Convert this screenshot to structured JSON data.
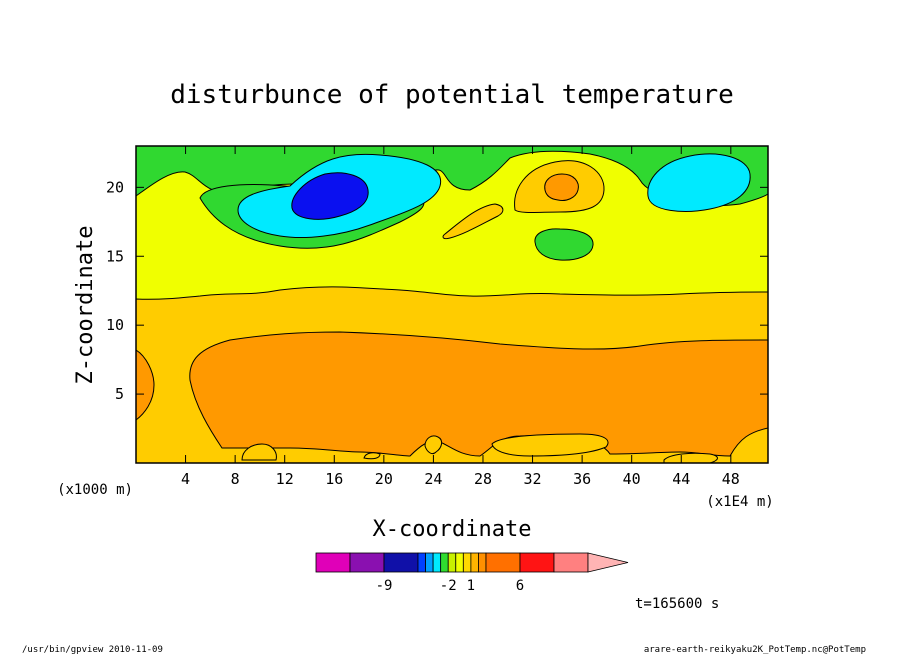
{
  "chart_data": {
    "type": "heatmap",
    "title": "disturbunce of potential temperature",
    "xlabel": "X-coordinate",
    "ylabel": "Z-coordinate",
    "x_unit": "(x1E4 m)",
    "y_unit": "(x1000 m)",
    "x_ticks": [
      4,
      8,
      12,
      16,
      20,
      24,
      28,
      32,
      36,
      40,
      44,
      48
    ],
    "y_ticks": [
      5,
      10,
      15,
      20
    ],
    "xlim": [
      0,
      51
    ],
    "ylim": [
      0,
      23
    ],
    "time_label": "t=165600 s",
    "colorbar": {
      "labels": [
        {
          "value": -9,
          "text": "-9"
        },
        {
          "value": -2,
          "text": "-2"
        },
        {
          "value": 1,
          "text": "1"
        },
        {
          "value": 6,
          "text": "6"
        }
      ],
      "bins": [
        {
          "from": -15,
          "to": -12,
          "color": "#e000b8"
        },
        {
          "from": -12,
          "to": -9,
          "color": "#8a10b0"
        },
        {
          "from": -9,
          "to": -6,
          "color": "#1010a8"
        },
        {
          "from": -6,
          "to": -5,
          "color": "#0040ff"
        },
        {
          "from": -5,
          "to": -4,
          "color": "#00a0ff"
        },
        {
          "from": -4,
          "to": -3,
          "color": "#00eaff"
        },
        {
          "from": -3,
          "to": -2,
          "color": "#30dc30"
        },
        {
          "from": -2,
          "to": -1,
          "color": "#c8f000"
        },
        {
          "from": -1,
          "to": 0,
          "color": "#f0ff00"
        },
        {
          "from": 0,
          "to": 1,
          "color": "#ffd800"
        },
        {
          "from": 1,
          "to": 2,
          "color": "#ffb400"
        },
        {
          "from": 2,
          "to": 3,
          "color": "#ff9000"
        },
        {
          "from": 3,
          "to": 6,
          "color": "#ff7000"
        },
        {
          "from": 6,
          "to": 9,
          "color": "#ff1414"
        },
        {
          "from": 9,
          "to": 15,
          "color": "#ff8080"
        }
      ],
      "overflow_color": "#ffb4b4"
    },
    "regions": [
      {
        "level": "0 to 1",
        "color": "#ffcc00",
        "description": "band z 0 to 12, between the 1 contour and the -1 contour"
      },
      {
        "level": "1 to 2",
        "color": "#ff9900",
        "description": "large region x 5 to 51, z 1.5 to 9.5; small patch near x 0, z 4 to 8"
      },
      {
        "level": "-1 to 0",
        "color": "#f0ff00",
        "description": "band z 12 to 19; small patch x 24 to 30, z 16 to 18.5"
      },
      {
        "level": "-3 to -2",
        "color": "#30d830",
        "description": "upper layer z 17 to 23; blob x 32 to 36, z 14.7 to 16.7"
      },
      {
        "level": "-4 to -3",
        "color": "#00eaff",
        "description": "cells centred x 16, z 19 and x 44, z 20.5"
      },
      {
        "level": "-6 to -4",
        "color": "#0a10f0",
        "description": "core x 14 to 18.5, z 17.5 to 21"
      },
      {
        "level": "0 to 1",
        "color": "#ffcc00",
        "description": "cell x 30 to 38, z 16.5 to 22"
      },
      {
        "level": "1 to 2",
        "color": "#ff9900",
        "description": "core x 32.5 to 35.5, z 19 to 21"
      }
    ]
  },
  "footer": {
    "left": "/usr/bin/gpview  2010-11-09",
    "right": "arare-earth-reikyaku2K_PotTemp.nc@PotTemp"
  }
}
